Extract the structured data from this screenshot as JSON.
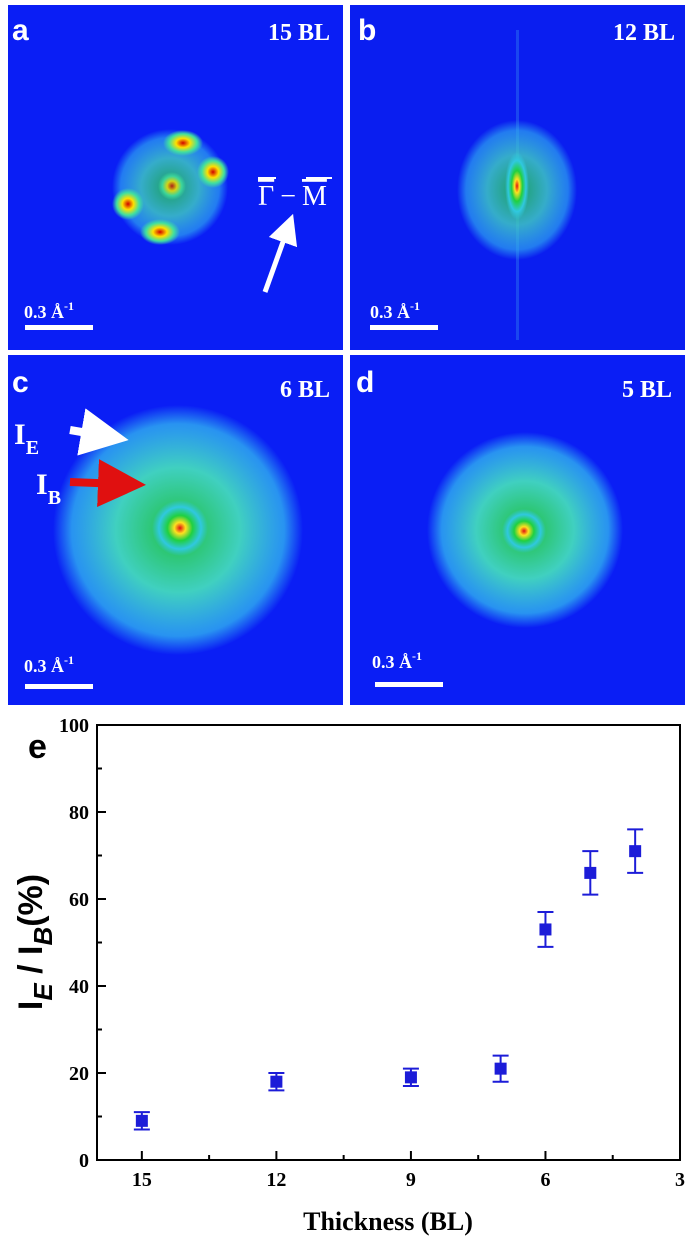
{
  "panels": [
    {
      "label": "a",
      "thickness": "15 BL",
      "scale": "0.3 Å",
      "scale_sup": "-1"
    },
    {
      "label": "b",
      "thickness": "12 BL",
      "scale": "0.3 Å",
      "scale_sup": "-1"
    },
    {
      "label": "c",
      "thickness": "6 BL",
      "scale": "0.3 Å",
      "scale_sup": "-1"
    },
    {
      "label": "d",
      "thickness": "5 BL",
      "scale": "0.3 Å",
      "scale_sup": "-1"
    }
  ],
  "annotations": {
    "direction": [
      "Γ",
      "−",
      "M"
    ],
    "edge": [
      "I",
      "E"
    ],
    "bulk": [
      "I",
      "B"
    ]
  },
  "chart_data": {
    "type": "scatter",
    "title": "e",
    "xlabel": "Thickness (BL)",
    "ylabel": [
      {
        "text": "I"
      },
      {
        "text": "E",
        "sub": true
      },
      {
        "text": " / I"
      },
      {
        "text": "B",
        "sub": true
      },
      {
        "text": "(%)"
      }
    ],
    "xlim": [
      16,
      3
    ],
    "ylim": [
      0,
      100
    ],
    "xticks": [
      15,
      12,
      9,
      6,
      3
    ],
    "yticks": [
      0,
      20,
      40,
      60,
      80,
      100
    ],
    "xminorticks": [
      13.5,
      10.5,
      7.5,
      4.5
    ],
    "yminorticks": [
      10,
      30,
      50,
      70,
      90
    ],
    "series": [
      {
        "color": "#1c1cd8",
        "x": [
          15,
          12,
          9,
          7,
          6,
          5,
          4
        ],
        "values": [
          9,
          18,
          19,
          21,
          53,
          66,
          71
        ],
        "errors": [
          2,
          2,
          2,
          3,
          4,
          5,
          5
        ]
      }
    ]
  }
}
